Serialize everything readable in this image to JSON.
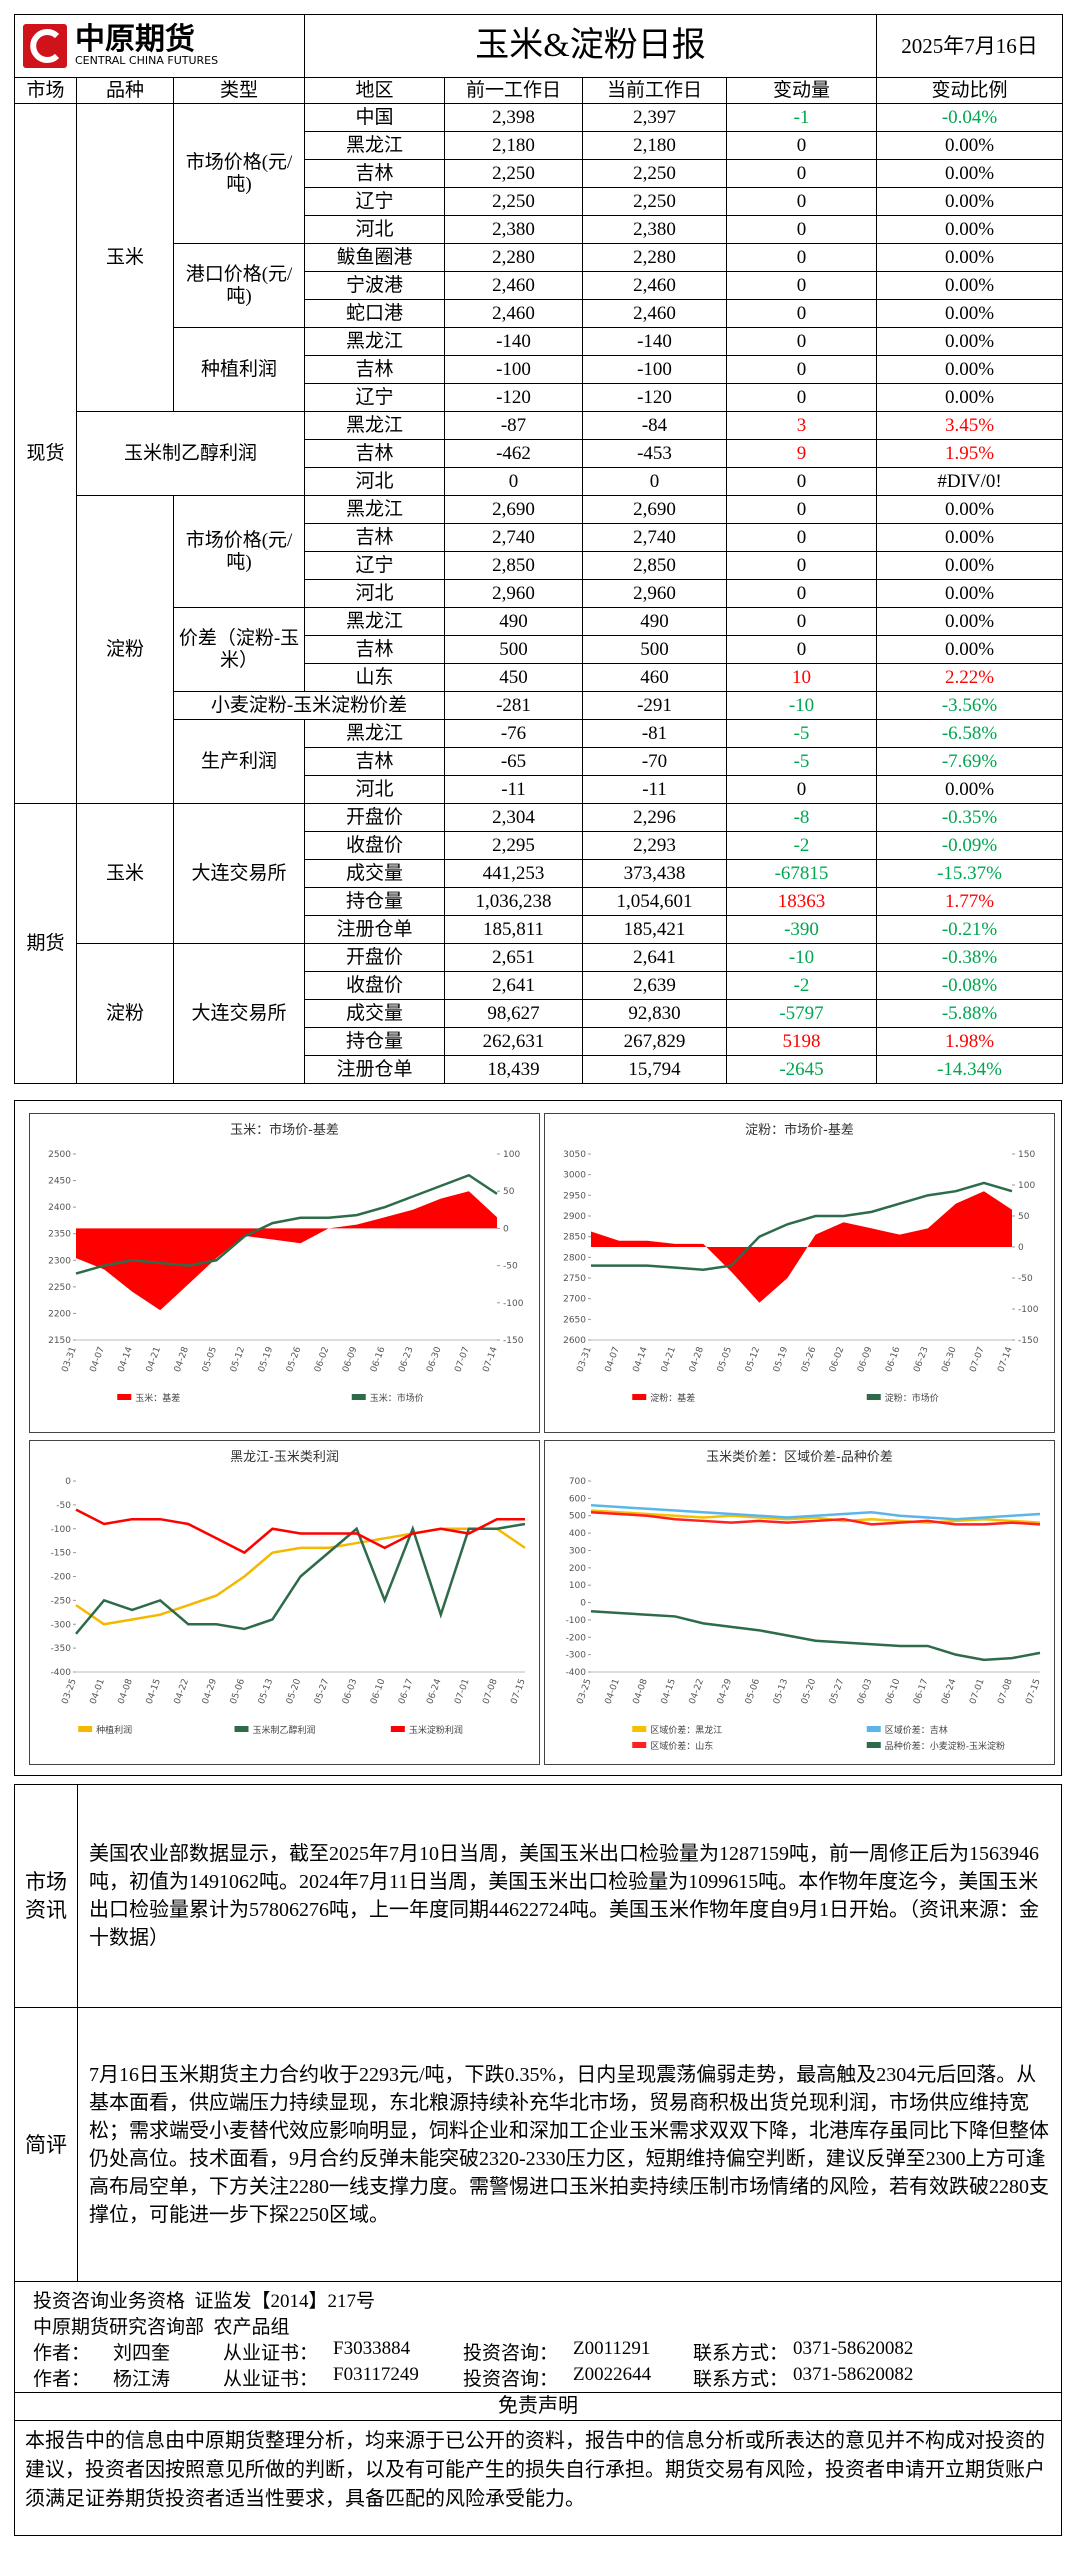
{
  "header": {
    "logo_cn": "中原期货",
    "logo_en": "CENTRAL CHINA FUTURES",
    "title": "玉米&淀粉日报",
    "date": "2025年7月16日"
  },
  "table": {
    "headers": [
      "市场",
      "品种",
      "类型",
      "地区",
      "前一工作日",
      "当前工作日",
      "变动量",
      "变动比例"
    ],
    "sections": [
      {
        "market": "现货",
        "groups": [
          {
            "variety": "玉米",
            "types": [
              {
                "type": "市场价格(元/吨)",
                "rows": [
                  [
                    "中国",
                    "2,398",
                    "2,397",
                    "-1",
                    "-0.04%"
                  ],
                  [
                    "黑龙江",
                    "2,180",
                    "2,180",
                    "0",
                    "0.00%"
                  ],
                  [
                    "吉林",
                    "2,250",
                    "2,250",
                    "0",
                    "0.00%"
                  ],
                  [
                    "辽宁",
                    "2,250",
                    "2,250",
                    "0",
                    "0.00%"
                  ],
                  [
                    "河北",
                    "2,380",
                    "2,380",
                    "0",
                    "0.00%"
                  ]
                ]
              },
              {
                "type": "港口价格(元/吨)",
                "rows": [
                  [
                    "鲅鱼圈港",
                    "2,280",
                    "2,280",
                    "0",
                    "0.00%"
                  ],
                  [
                    "宁波港",
                    "2,460",
                    "2,460",
                    "0",
                    "0.00%"
                  ],
                  [
                    "蛇口港",
                    "2,460",
                    "2,460",
                    "0",
                    "0.00%"
                  ]
                ]
              },
              {
                "type": "种植利润",
                "rows": [
                  [
                    "黑龙江",
                    "-140",
                    "-140",
                    "0",
                    "0.00%"
                  ],
                  [
                    "吉林",
                    "-100",
                    "-100",
                    "0",
                    "0.00%"
                  ],
                  [
                    "辽宁",
                    "-120",
                    "-120",
                    "0",
                    "0.00%"
                  ]
                ]
              }
            ]
          },
          {
            "variety": "玉米制乙醇利润",
            "rows": [
              [
                "黑龙江",
                "-87",
                "-84",
                "3",
                "3.45%"
              ],
              [
                "吉林",
                "-462",
                "-453",
                "9",
                "1.95%"
              ],
              [
                "河北",
                "0",
                "0",
                "0",
                "#DIV/0!"
              ]
            ]
          },
          {
            "variety": "淀粉",
            "types": [
              {
                "type": "市场价格(元/吨)",
                "rows": [
                  [
                    "黑龙江",
                    "2,690",
                    "2,690",
                    "0",
                    "0.00%"
                  ],
                  [
                    "吉林",
                    "2,740",
                    "2,740",
                    "0",
                    "0.00%"
                  ],
                  [
                    "辽宁",
                    "2,850",
                    "2,850",
                    "0",
                    "0.00%"
                  ],
                  [
                    "河北",
                    "2,960",
                    "2,960",
                    "0",
                    "0.00%"
                  ]
                ]
              },
              {
                "type": "价差（淀粉-玉米）",
                "rows": [
                  [
                    "黑龙江",
                    "490",
                    "490",
                    "0",
                    "0.00%"
                  ],
                  [
                    "吉林",
                    "500",
                    "500",
                    "0",
                    "0.00%"
                  ],
                  [
                    "山东",
                    "450",
                    "460",
                    "10",
                    "2.22%"
                  ]
                ]
              },
              {
                "type": "小麦淀粉-玉米淀粉价差",
                "rows": [
                  [
                    "-281",
                    "-291",
                    "-10",
                    "-3.56%"
                  ]
                ]
              },
              {
                "type": "生产利润",
                "rows": [
                  [
                    "黑龙江",
                    "-76",
                    "-81",
                    "-5",
                    "-6.58%"
                  ],
                  [
                    "吉林",
                    "-65",
                    "-70",
                    "-5",
                    "-7.69%"
                  ],
                  [
                    "河北",
                    "-11",
                    "-11",
                    "0",
                    "0.00%"
                  ]
                ]
              }
            ]
          }
        ]
      },
      {
        "market": "期货",
        "groups": [
          {
            "variety": "玉米",
            "types": [
              {
                "type": "大连交易所",
                "rows": [
                  [
                    "开盘价",
                    "2,304",
                    "2,296",
                    "-8",
                    "-0.35%"
                  ],
                  [
                    "收盘价",
                    "2,295",
                    "2,293",
                    "-2",
                    "-0.09%"
                  ],
                  [
                    "成交量",
                    "441,253",
                    "373,438",
                    "-67815",
                    "-15.37%"
                  ],
                  [
                    "持仓量",
                    "1,036,238",
                    "1,054,601",
                    "18363",
                    "1.77%"
                  ],
                  [
                    "注册仓单",
                    "185,811",
                    "185,421",
                    "-390",
                    "-0.21%"
                  ]
                ]
              }
            ]
          },
          {
            "variety": "淀粉",
            "types": [
              {
                "type": "大连交易所",
                "rows": [
                  [
                    "开盘价",
                    "2,651",
                    "2,641",
                    "-10",
                    "-0.38%"
                  ],
                  [
                    "收盘价",
                    "2,641",
                    "2,639",
                    "-2",
                    "-0.08%"
                  ],
                  [
                    "成交量",
                    "98,627",
                    "92,830",
                    "-5797",
                    "-5.88%"
                  ],
                  [
                    "持仓量",
                    "262,631",
                    "267,829",
                    "5198",
                    "1.98%"
                  ],
                  [
                    "注册仓单",
                    "18,439",
                    "15,794",
                    "-2645",
                    "-14.34%"
                  ]
                ]
              }
            ]
          }
        ]
      }
    ]
  },
  "chart_data": [
    {
      "type": "line",
      "title": "玉米：市场价-基差",
      "categories": [
        "03-31",
        "04-07",
        "04-14",
        "04-21",
        "04-28",
        "05-05",
        "05-12",
        "05-19",
        "05-26",
        "06-02",
        "06-09",
        "06-16",
        "06-23",
        "06-30",
        "07-07",
        "07-14"
      ],
      "ylim": [
        2150,
        2500
      ],
      "yticks": [
        2150,
        2200,
        2250,
        2300,
        2350,
        2400,
        2450,
        2500
      ],
      "y2lim": [
        -150,
        100
      ],
      "y2ticks": [
        -150,
        -100,
        -50,
        0,
        50,
        100
      ],
      "series": [
        {
          "name": "玉米：基差",
          "type": "area",
          "color": "#ff0000",
          "axis": "y2",
          "values": [
            -40,
            -55,
            -85,
            -110,
            -75,
            -40,
            -10,
            -15,
            -20,
            0,
            5,
            15,
            25,
            40,
            50,
            15
          ]
        },
        {
          "name": "玉米：市场价",
          "type": "line",
          "color": "#2e6b4a",
          "values": [
            2275,
            2290,
            2300,
            2295,
            2290,
            2300,
            2345,
            2370,
            2380,
            2380,
            2385,
            2400,
            2420,
            2440,
            2460,
            2425
          ]
        }
      ]
    },
    {
      "type": "line",
      "title": "淀粉：市场价-基差",
      "categories": [
        "03-31",
        "04-07",
        "04-14",
        "04-21",
        "04-28",
        "05-05",
        "05-12",
        "05-19",
        "05-26",
        "06-02",
        "06-09",
        "06-16",
        "06-23",
        "06-30",
        "07-07",
        "07-14"
      ],
      "ylim": [
        2600,
        3050
      ],
      "yticks": [
        2600,
        2650,
        2700,
        2750,
        2800,
        2850,
        2900,
        2950,
        3000,
        3050
      ],
      "y2lim": [
        -150,
        150
      ],
      "y2ticks": [
        -150,
        -100,
        -50,
        0,
        50,
        100,
        150
      ],
      "series": [
        {
          "name": "淀粉：基差",
          "type": "area",
          "color": "#ff0000",
          "axis": "y2",
          "values": [
            25,
            10,
            10,
            5,
            5,
            -40,
            -90,
            -50,
            20,
            40,
            30,
            20,
            30,
            70,
            90,
            60
          ]
        },
        {
          "name": "淀粉：市场价",
          "type": "line",
          "color": "#2e6b4a",
          "values": [
            2780,
            2780,
            2780,
            2775,
            2770,
            2780,
            2850,
            2880,
            2900,
            2900,
            2910,
            2930,
            2950,
            2960,
            2980,
            2960
          ]
        }
      ]
    },
    {
      "type": "line",
      "title": "黑龙江-玉米类利润",
      "categories": [
        "03-25",
        "04-01",
        "04-08",
        "04-15",
        "04-22",
        "04-29",
        "05-06",
        "05-13",
        "05-20",
        "05-27",
        "06-03",
        "06-10",
        "06-17",
        "06-24",
        "07-01",
        "07-08",
        "07-15"
      ],
      "ylim": [
        -400,
        0
      ],
      "yticks": [
        -400,
        -350,
        -300,
        -250,
        -200,
        -150,
        -100,
        -50,
        0
      ],
      "series": [
        {
          "name": "种植利润",
          "type": "line",
          "color": "#f5b800",
          "values": [
            -260,
            -300,
            -290,
            -280,
            -260,
            -240,
            -200,
            -150,
            -140,
            -140,
            -130,
            -120,
            -110,
            -100,
            -100,
            -100,
            -140
          ]
        },
        {
          "name": "玉米制乙醇利润",
          "type": "line",
          "color": "#2e6b4a",
          "values": [
            -320,
            -250,
            -270,
            -250,
            -300,
            -300,
            -310,
            -290,
            -200,
            -150,
            -100,
            -250,
            -100,
            -280,
            -100,
            -100,
            -90
          ]
        },
        {
          "name": "玉米淀粉利润",
          "type": "line",
          "color": "#ff0000",
          "values": [
            -60,
            -90,
            -80,
            -80,
            -90,
            -120,
            -150,
            -100,
            -110,
            -110,
            -110,
            -140,
            -110,
            -100,
            -110,
            -80,
            -80
          ]
        }
      ]
    },
    {
      "type": "line",
      "title": "玉米类价差：区域价差-品种价差",
      "categories": [
        "03-25",
        "04-01",
        "04-08",
        "04-15",
        "04-22",
        "04-29",
        "05-06",
        "05-13",
        "05-20",
        "05-27",
        "06-03",
        "06-10",
        "06-17",
        "06-24",
        "07-01",
        "07-08",
        "07-15"
      ],
      "ylim": [
        -400,
        700
      ],
      "yticks": [
        -400,
        -300,
        -200,
        -100,
        0,
        100,
        200,
        300,
        400,
        500,
        600,
        700
      ],
      "series": [
        {
          "name": "区域价差：黑龙江",
          "type": "line",
          "color": "#f5c000",
          "values": [
            530,
            520,
            510,
            500,
            490,
            500,
            490,
            480,
            490,
            470,
            480,
            470,
            460,
            470,
            480,
            470,
            460
          ]
        },
        {
          "name": "区域价差：吉林",
          "type": "line",
          "color": "#5bb5e8",
          "values": [
            560,
            550,
            540,
            530,
            520,
            510,
            500,
            490,
            500,
            510,
            520,
            500,
            490,
            480,
            490,
            500,
            510
          ]
        },
        {
          "name": "区域价差：山东",
          "type": "line",
          "color": "#ff2020",
          "values": [
            520,
            510,
            500,
            480,
            470,
            460,
            470,
            460,
            470,
            480,
            450,
            460,
            470,
            450,
            450,
            460,
            450
          ]
        },
        {
          "name": "品种价差：小麦淀粉-玉米淀粉",
          "type": "line",
          "color": "#2e6b4a",
          "values": [
            -50,
            -60,
            -70,
            -80,
            -120,
            -140,
            -160,
            -190,
            -220,
            -230,
            -240,
            -250,
            -250,
            -300,
            -330,
            -320,
            -290
          ]
        }
      ]
    }
  ],
  "news": {
    "label": "市场资讯",
    "text": "美国农业部数据显示，截至2025年7月10日当周，美国玉米出口检验量为1287159吨，前一周修正后为1563946吨，初值为1491062吨。2024年7月11日当周，美国玉米出口检验量为1099615吨。本作物年度迄今，美国玉米出口检验量累计为57806276吨，上一年度同期44622724吨。美国玉米作物年度自9月1日开始。（资讯来源：金十数据）"
  },
  "comment": {
    "label": "简评",
    "text": "7月16日玉米期货主力合约收于2293元/吨，下跌0.35%，日内呈现震荡偏弱走势，最高触及2304元后回落。从基本面看，供应端压力持续显现，东北粮源持续补充华北市场，贸易商积极出货兑现利润，市场供应维持宽松；需求端受小麦替代效应影响明显，饲料企业和深加工企业玉米需求双双下降，北港库存虽同比下降但整体仍处高位。技术面看，9月合约反弹未能突破2320-2330压力区，短期维持偏空判断，建议反弹至2300上方可逢高布局空单，下方关注2280一线支撑力度。需警惕进口玉米拍卖持续压制市场情绪的风险，若有效跌破2280支撑位，可能进一步下探2250区域。"
  },
  "footer": {
    "qualification": "投资咨询业务资格",
    "qualification_no": "证监发【2014】217号",
    "dept": "中原期货研究咨询部",
    "group": "农产品组",
    "author_label": "作者：",
    "cert_label": "从业证书：",
    "advisory_label": "投资咨询：",
    "contact_label": "联系方式：",
    "authors": [
      {
        "name": "刘四奎",
        "cert": "F3033884",
        "advisory": "Z0011291",
        "contact": "0371-58620082"
      },
      {
        "name": "杨江涛",
        "cert": "F03117249",
        "advisory": "Z0022644",
        "contact": "0371-58620082"
      }
    ]
  },
  "disclaimer": {
    "title": "免责声明",
    "text": "本报告中的信息由中原期货整理分析，均来源于已公开的资料，报告中的信息分析或所表达的意见并不构成对投资的建议，投资者因按照意见所做的判断，以及有可能产生的损失自行承担。期货交易有风险，投资者申请开立期货账户须满足证券期货投资者适当性要求，具备匹配的风险承受能力。"
  }
}
